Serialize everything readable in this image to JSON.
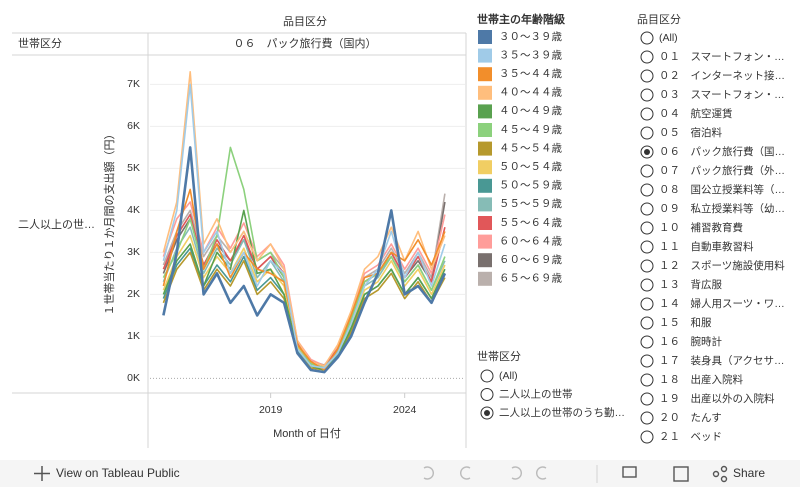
{
  "chart_data": {
    "type": "line",
    "column_header": "品目区分",
    "column_value": "０６　パック旅行費（国内）",
    "row_header": "世帯区分",
    "row_value": "二人以上の世…",
    "y_label": "１世帯当たり１か月間の支出額（円）",
    "x_label": "Month of 日付",
    "x": [
      2015,
      2015.5,
      2016,
      2016.5,
      2017,
      2017.5,
      2018,
      2018.5,
      2019,
      2019.5,
      2020,
      2020.5,
      2021,
      2021.5,
      2022,
      2022.5,
      2023,
      2023.5,
      2024,
      2024.5,
      2025,
      2025.5
    ],
    "xlim": [
      2014.5,
      2026.25
    ],
    "xticks": [
      2019,
      2024
    ],
    "ylim": [
      -300,
      7700
    ],
    "yticks": [
      {
        "value": 0,
        "label": "0K"
      },
      {
        "value": 1000,
        "label": "1K"
      },
      {
        "value": 2000,
        "label": "2K"
      },
      {
        "value": 3000,
        "label": "3K"
      },
      {
        "value": 4000,
        "label": "4K"
      },
      {
        "value": 5000,
        "label": "5K"
      },
      {
        "value": 6000,
        "label": "6K"
      },
      {
        "value": 7000,
        "label": "7K"
      }
    ],
    "grid": true,
    "legend_title": "世帯主の年齢階級",
    "series": [
      {
        "name": "３０～３９歳",
        "color": "#4e79a7",
        "values": [
          1500,
          3000,
          5500,
          2000,
          2500,
          1800,
          2200,
          1500,
          2000,
          1800,
          600,
          200,
          150,
          500,
          1000,
          1800,
          2500,
          4000,
          2000,
          2200,
          1800,
          2500
        ]
      },
      {
        "name": "３５～３９歳",
        "color": "#a0cbe8",
        "values": [
          2800,
          4000,
          7000,
          3000,
          3500,
          2500,
          3000,
          2200,
          2800,
          2500,
          700,
          300,
          250,
          600,
          1300,
          2200,
          2600,
          3500,
          2400,
          3000,
          2200,
          3200
        ]
      },
      {
        "name": "３５～４４歳",
        "color": "#f28e2b",
        "values": [
          2200,
          3500,
          4500,
          2600,
          3200,
          2400,
          3000,
          2600,
          2500,
          2300,
          800,
          400,
          200,
          700,
          1500,
          2400,
          2500,
          3000,
          2800,
          3300,
          2700,
          3500
        ]
      },
      {
        "name": "４０～４４歳",
        "color": "#ffbe7d",
        "values": [
          3000,
          4200,
          7300,
          3200,
          3800,
          3000,
          3500,
          2800,
          3200,
          2600,
          900,
          400,
          300,
          800,
          1600,
          2600,
          2900,
          3600,
          2800,
          3500,
          2600,
          3400
        ]
      },
      {
        "name": "４０～４９歳",
        "color": "#59a14f",
        "values": [
          2000,
          2800,
          3200,
          2200,
          3000,
          2600,
          4000,
          2500,
          2600,
          2000,
          700,
          300,
          200,
          500,
          1200,
          2000,
          2200,
          2600,
          2000,
          2400,
          1900,
          2600
        ]
      },
      {
        "name": "４５～４９歳",
        "color": "#8cd17d",
        "values": [
          2400,
          3000,
          3800,
          2600,
          3400,
          5500,
          4500,
          2800,
          3000,
          2400,
          800,
          350,
          250,
          600,
          1400,
          2300,
          2500,
          2900,
          2300,
          2700,
          2100,
          2900
        ]
      },
      {
        "name": "４５～５４歳",
        "color": "#b6992d",
        "values": [
          1800,
          2600,
          3000,
          2100,
          2600,
          2200,
          2800,
          2000,
          2300,
          1900,
          600,
          250,
          200,
          500,
          1100,
          1900,
          2100,
          2500,
          1900,
          2300,
          1800,
          2400
        ]
      },
      {
        "name": "５０～５４歳",
        "color": "#f1ce63",
        "values": [
          2100,
          2900,
          3400,
          2400,
          2900,
          2500,
          3100,
          2300,
          2600,
          2200,
          750,
          350,
          250,
          600,
          1300,
          2100,
          2300,
          2800,
          2200,
          2600,
          2000,
          2700
        ]
      },
      {
        "name": "５０～５９歳",
        "color": "#499894",
        "values": [
          1900,
          2700,
          3100,
          2200,
          2700,
          2300,
          2900,
          2100,
          2400,
          2000,
          650,
          300,
          200,
          550,
          1150,
          2000,
          2200,
          2600,
          2000,
          2400,
          1900,
          2500
        ]
      },
      {
        "name": "５５～５９歳",
        "color": "#86bcb6",
        "values": [
          2300,
          3100,
          3600,
          2500,
          3100,
          2700,
          3300,
          2400,
          2800,
          2300,
          800,
          350,
          250,
          650,
          1350,
          2200,
          2400,
          2900,
          2300,
          2700,
          2100,
          2800
        ]
      },
      {
        "name": "５５～６４歳",
        "color": "#e15759",
        "values": [
          2600,
          3400,
          3900,
          2700,
          3300,
          2800,
          3400,
          2600,
          2900,
          2500,
          850,
          400,
          300,
          700,
          1450,
          2300,
          2500,
          3000,
          2400,
          2900,
          2300,
          3600
        ]
      },
      {
        "name": "６０～６４歳",
        "color": "#ff9d9a",
        "values": [
          2900,
          3800,
          4200,
          3000,
          3600,
          3100,
          3700,
          2900,
          3200,
          2700,
          900,
          450,
          300,
          750,
          1550,
          2500,
          2700,
          3200,
          2600,
          3100,
          2500,
          3900
        ]
      },
      {
        "name": "６０～６９歳",
        "color": "#79706e",
        "values": [
          2500,
          3300,
          3800,
          2700,
          3200,
          2800,
          3300,
          2600,
          2900,
          2400,
          800,
          400,
          300,
          650,
          1400,
          2300,
          2500,
          3000,
          2400,
          2800,
          2300,
          4200
        ]
      },
      {
        "name": "６５～６９歳",
        "color": "#bab0ac",
        "values": [
          2700,
          3500,
          4000,
          2900,
          3400,
          3000,
          3500,
          2800,
          3000,
          2600,
          850,
          420,
          320,
          700,
          1500,
          2400,
          2600,
          3100,
          2500,
          3000,
          2400,
          4400
        ]
      }
    ]
  },
  "household_filter": {
    "title": "世帯区分",
    "selected": 2,
    "options": [
      "(All)",
      "二人以上の世帯",
      "二人以上の世帯のうち勤…"
    ]
  },
  "item_filter": {
    "title": "品目区分",
    "selected": 6,
    "options": [
      "(All)",
      "０１　スマートフォン・…",
      "０２　インターネット接…",
      "０３　スマートフォン・…",
      "０４　航空運賃",
      "０５　宿泊料",
      "０６　パック旅行費（国…",
      "０７　パック旅行費（外…",
      "０８　国公立授業料等（…",
      "０９　私立授業料等（幼…",
      "１０　補習教育費",
      "１１　自動車教習料",
      "１２　スポーツ施設使用料",
      "１３　背広服",
      "１４　婦人用スーツ・ワ…",
      "１５　和服",
      "１６　腕時計",
      "１７　装身具（アクセサ…",
      "１８　出産入院料",
      "１９　出産以外の入院料",
      "２０　たんす",
      "２１　ベッド"
    ]
  },
  "toolbar": {
    "view_link": "View on Tableau Public",
    "share": "Share"
  }
}
